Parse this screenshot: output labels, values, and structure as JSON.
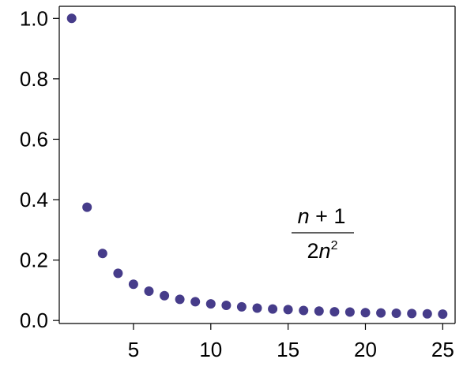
{
  "chart_data": {
    "type": "scatter",
    "title": "",
    "xlabel": "",
    "ylabel": "",
    "xlim": [
      0.2,
      25.8
    ],
    "ylim": [
      -0.01,
      1.04
    ],
    "grid": false,
    "legend": "none",
    "x_ticks": [
      5,
      10,
      15,
      20,
      25
    ],
    "x_tick_labels": [
      "5",
      "10",
      "15",
      "20",
      "25"
    ],
    "y_ticks": [
      0.0,
      0.2,
      0.4,
      0.6,
      0.8,
      1.0
    ],
    "y_tick_labels": [
      "0.0",
      "0.2",
      "0.4",
      "0.6",
      "0.8",
      "1.0"
    ],
    "marker_color": "#463c8a",
    "series": [
      {
        "x": [
          1,
          2,
          3,
          4,
          5,
          6,
          7,
          8,
          9,
          10,
          11,
          12,
          13,
          14,
          15,
          16,
          17,
          18,
          19,
          20,
          21,
          22,
          23,
          24,
          25
        ],
        "values": [
          1.0,
          0.375,
          0.222,
          0.156,
          0.12,
          0.097,
          0.082,
          0.07,
          0.062,
          0.055,
          0.05,
          0.045,
          0.041,
          0.038,
          0.036,
          0.033,
          0.031,
          0.029,
          0.028,
          0.026,
          0.025,
          0.024,
          0.023,
          0.022,
          0.021
        ]
      }
    ],
    "annotation": {
      "numerator_var": "n",
      "numerator_rest": " + 1",
      "denominator_coef": "2",
      "denominator_var": "n",
      "denominator_exp": "2"
    }
  }
}
